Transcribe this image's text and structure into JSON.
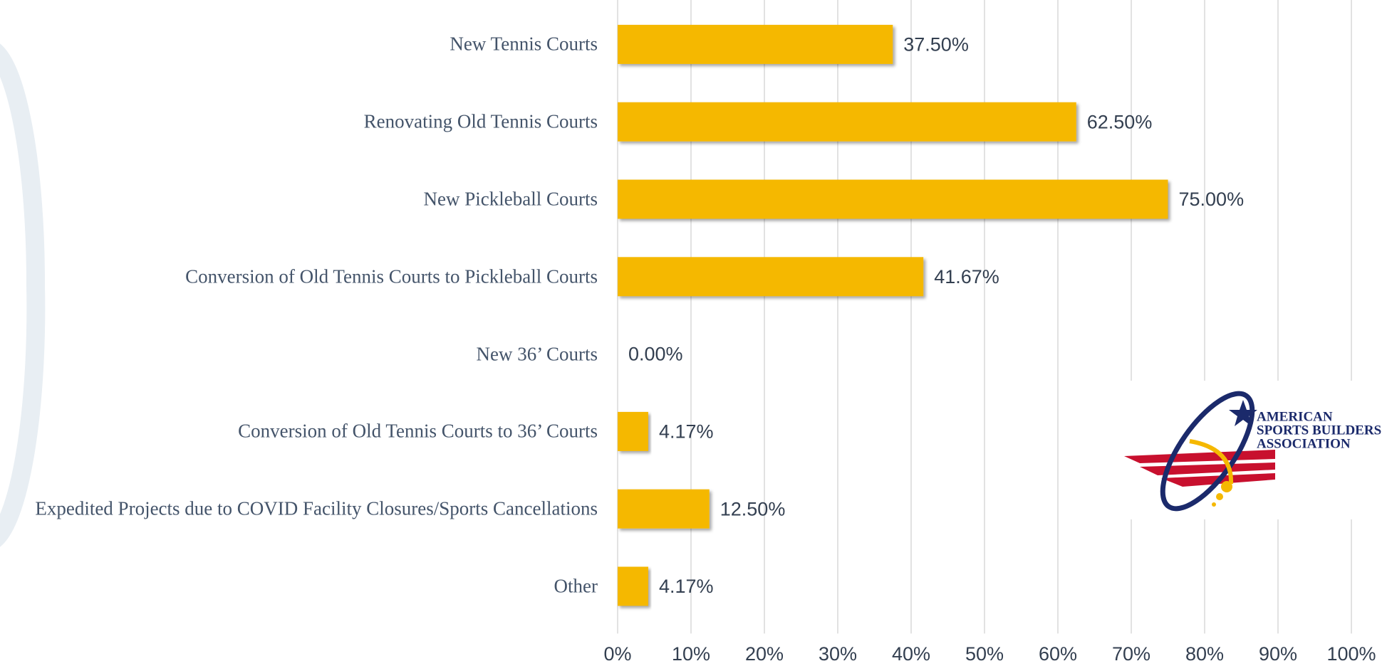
{
  "chart_data": {
    "type": "barh",
    "categories": [
      "New Tennis Courts",
      "Renovating Old Tennis Courts",
      "New Pickleball Courts",
      "Conversion of Old Tennis Courts to Pickleball Courts",
      "New 36’ Courts",
      "Conversion of Old Tennis Courts to 36’ Courts",
      "Expedited Projects due to COVID Facility Closures/Sports Cancellations",
      "Other"
    ],
    "values": [
      37.5,
      62.5,
      75,
      41.67,
      0,
      4.17,
      12.5,
      4.17
    ],
    "value_labels": [
      "37.50%",
      "62.50%",
      "75.00%",
      "41.67%",
      "0.00%",
      "4.17%",
      "12.50%",
      "4.17%"
    ],
    "color": "#f5b800",
    "xlim": [
      0,
      100
    ],
    "xticks": [
      {
        "value": 0,
        "label": "0%"
      },
      {
        "value": 10,
        "label": "10%"
      },
      {
        "value": 20,
        "label": "20%"
      },
      {
        "value": 30,
        "label": "30%"
      },
      {
        "value": 40,
        "label": "40%"
      },
      {
        "value": 50,
        "label": "50%"
      },
      {
        "value": 60,
        "label": "60%"
      },
      {
        "value": 70,
        "label": "70%"
      },
      {
        "value": 80,
        "label": "80%"
      },
      {
        "value": 90,
        "label": "90%"
      },
      {
        "value": 100,
        "label": "100%"
      }
    ],
    "grid": true
  },
  "logo": {
    "lines": [
      "AMERICAN",
      "SPORTS BUILDERS",
      "ASSOCIATION"
    ]
  }
}
